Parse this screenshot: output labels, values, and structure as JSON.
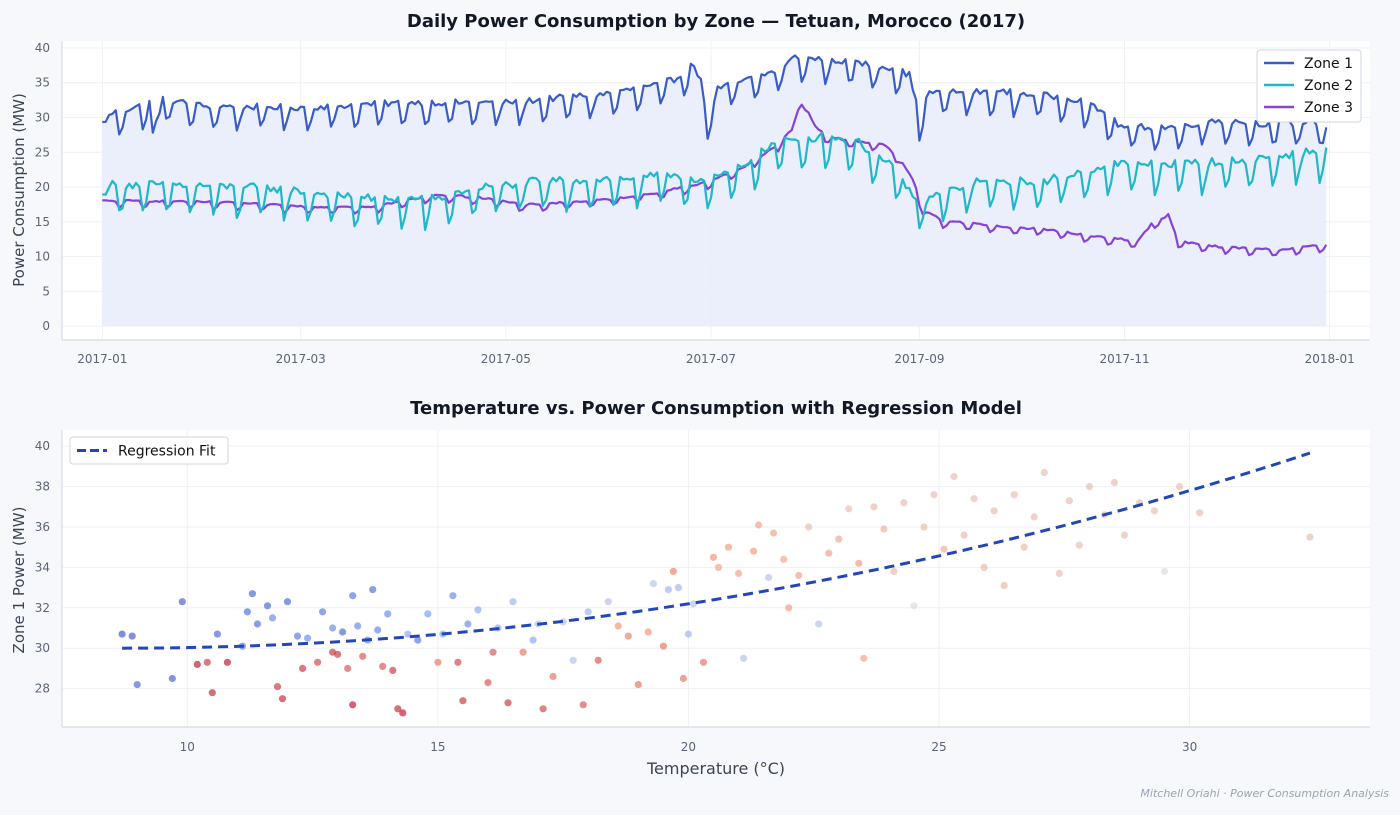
{
  "footer": "Mitchell Oriahi · Power Consumption Analysis",
  "colors": {
    "page_bg": "#f6f8fb",
    "plot_bg": "#ffffff",
    "zone1": "#3a5cc7",
    "zone2": "#1fb7c9",
    "zone3": "#8743d6",
    "zone1_fill": "#e9ecfb",
    "regression": "#2346b8",
    "title": "#121826",
    "axis_text": "#5b6577",
    "label_text": "#3c4556",
    "grid": "#eef1f5",
    "spine": "#d6dbe4"
  },
  "chart_data": [
    {
      "type": "line",
      "title": "Daily Power Consumption by Zone — Tetuan, Morocco (2017)",
      "xlabel": "",
      "ylabel": "Power Consumption (MW)",
      "x_range": [
        "2017-01-01",
        "2017-12-31"
      ],
      "xlim": [
        -12,
        377
      ],
      "ylim": [
        -2,
        41
      ],
      "x_ticks": [
        {
          "label": "2017-01",
          "day": 0
        },
        {
          "label": "2017-03",
          "day": 59
        },
        {
          "label": "2017-05",
          "day": 120
        },
        {
          "label": "2017-07",
          "day": 181
        },
        {
          "label": "2017-09",
          "day": 243
        },
        {
          "label": "2017-11",
          "day": 304
        },
        {
          "label": "2018-01",
          "day": 365
        }
      ],
      "y_ticks": [
        0,
        5,
        10,
        15,
        20,
        25,
        30,
        35,
        40
      ],
      "grid": true,
      "legend_position": "top-right",
      "area_fill_series": "Zone 1",
      "series": [
        {
          "name": "Zone 1",
          "color": "#3a5cc7",
          "keypoints": [
            [
              0,
              28.5
            ],
            [
              3,
              30
            ],
            [
              10,
              30.8
            ],
            [
              14,
              31.5
            ],
            [
              15,
              27
            ],
            [
              18,
              32
            ],
            [
              30,
              31
            ],
            [
              60,
              30.8
            ],
            [
              90,
              31.5
            ],
            [
              120,
              31.5
            ],
            [
              150,
              32.8
            ],
            [
              165,
              34
            ],
            [
              171,
              35
            ],
            [
              175,
              37
            ],
            [
              178,
              35
            ],
            [
              180,
              29
            ],
            [
              183,
              33.5
            ],
            [
              200,
              36
            ],
            [
              206,
              38
            ],
            [
              220,
              37.5
            ],
            [
              235,
              36.5
            ],
            [
              240,
              35.5
            ],
            [
              243,
              29.5
            ],
            [
              246,
              33
            ],
            [
              270,
              33
            ],
            [
              290,
              32
            ],
            [
              298,
              30
            ],
            [
              303,
              28
            ],
            [
              320,
              28
            ],
            [
              330,
              29
            ],
            [
              345,
              28.5
            ],
            [
              355,
              28.5
            ],
            [
              360,
              29
            ],
            [
              364,
              28
            ]
          ],
          "weekly_amp": 2.6
        },
        {
          "name": "Zone 2",
          "color": "#1fb7c9",
          "keypoints": [
            [
              0,
              17.8
            ],
            [
              2,
              19.5
            ],
            [
              20,
              19.5
            ],
            [
              50,
              19
            ],
            [
              80,
              17.5
            ],
            [
              100,
              17.5
            ],
            [
              110,
              19
            ],
            [
              130,
              20
            ],
            [
              160,
              20.5
            ],
            [
              170,
              21
            ],
            [
              180,
              20
            ],
            [
              190,
              22
            ],
            [
              200,
              25.5
            ],
            [
              215,
              26.5
            ],
            [
              225,
              25.5
            ],
            [
              235,
              22
            ],
            [
              243,
              16.8
            ],
            [
              248,
              18
            ],
            [
              260,
              20
            ],
            [
              280,
              20
            ],
            [
              300,
              22.5
            ],
            [
              320,
              22.5
            ],
            [
              340,
              23
            ],
            [
              355,
              24
            ],
            [
              364,
              24.3
            ]
          ],
          "weekly_amp": 3.4
        },
        {
          "name": "Zone 3",
          "color": "#8743d6",
          "keypoints": [
            [
              0,
              17.8
            ],
            [
              20,
              17.8
            ],
            [
              40,
              17.5
            ],
            [
              60,
              17
            ],
            [
              80,
              17
            ],
            [
              100,
              18.7
            ],
            [
              115,
              18.2
            ],
            [
              125,
              17.2
            ],
            [
              150,
              18
            ],
            [
              165,
              19
            ],
            [
              180,
              20.5
            ],
            [
              190,
              22.5
            ],
            [
              200,
              25.5
            ],
            [
              205,
              28
            ],
            [
              208,
              32.5
            ],
            [
              212,
              28.5
            ],
            [
              216,
              27
            ],
            [
              222,
              26.5
            ],
            [
              232,
              26
            ],
            [
              237,
              24
            ],
            [
              241,
              21
            ],
            [
              244,
              16.5
            ],
            [
              250,
              15
            ],
            [
              260,
              14.5
            ],
            [
              270,
              14
            ],
            [
              280,
              13.8
            ],
            [
              290,
              13
            ],
            [
              300,
              12.5
            ],
            [
              308,
              12
            ],
            [
              312,
              14.5
            ],
            [
              317,
              15.8
            ],
            [
              320,
              12
            ],
            [
              330,
              11.3
            ],
            [
              340,
              11
            ],
            [
              350,
              10.8
            ],
            [
              364,
              11.5
            ]
          ],
          "weekly_amp": 0.8
        }
      ]
    },
    {
      "type": "scatter",
      "title": "Temperature vs. Power Consumption with Regression Model",
      "xlabel": "Temperature (°C)",
      "ylabel": "Zone 1 Power (MW)",
      "xlim": [
        7.5,
        33.6
      ],
      "ylim": [
        26.1,
        40.8
      ],
      "x_ticks": [
        10,
        15,
        20,
        25,
        30
      ],
      "y_ticks": [
        28,
        30,
        32,
        34,
        36,
        38,
        40
      ],
      "grid": true,
      "legend_position": "top-left",
      "series": [
        {
          "name": "Regression Fit",
          "style": "dashed",
          "color": "#2346b8",
          "polynomial": {
            "x0": 8.7,
            "c0": 30.0,
            "c1": 0.0,
            "c2": 0.01719
          },
          "x_range": [
            8.7,
            32.4
          ]
        }
      ],
      "points": [
        [
          8.7,
          30.7,
          0.05
        ],
        [
          8.9,
          30.6,
          0.06
        ],
        [
          9.0,
          28.2,
          0.1
        ],
        [
          9.7,
          28.5,
          0.08
        ],
        [
          9.9,
          32.3,
          0.08
        ],
        [
          10.2,
          29.2,
          0.95
        ],
        [
          10.4,
          29.3,
          0.9
        ],
        [
          10.6,
          30.7,
          0.1
        ],
        [
          10.8,
          29.3,
          0.95
        ],
        [
          10.5,
          27.8,
          0.92
        ],
        [
          11.1,
          30.1,
          0.15
        ],
        [
          11.2,
          31.8,
          0.12
        ],
        [
          11.3,
          32.7,
          0.1
        ],
        [
          11.4,
          31.2,
          0.12
        ],
        [
          11.6,
          32.1,
          0.1
        ],
        [
          11.7,
          31.5,
          0.2
        ],
        [
          11.8,
          28.1,
          0.9
        ],
        [
          11.9,
          27.5,
          0.92
        ],
        [
          12.0,
          32.3,
          0.1
        ],
        [
          12.2,
          30.6,
          0.15
        ],
        [
          12.3,
          29.0,
          0.9
        ],
        [
          12.4,
          30.5,
          0.2
        ],
        [
          12.6,
          29.3,
          0.88
        ],
        [
          12.7,
          31.8,
          0.15
        ],
        [
          12.9,
          31.0,
          0.2
        ],
        [
          13.0,
          29.7,
          0.9
        ],
        [
          13.1,
          30.8,
          0.1
        ],
        [
          13.2,
          29.0,
          0.85
        ],
        [
          13.3,
          32.6,
          0.15
        ],
        [
          13.4,
          31.1,
          0.2
        ],
        [
          13.5,
          29.6,
          0.85
        ],
        [
          13.6,
          30.4,
          0.2
        ],
        [
          13.7,
          32.9,
          0.12
        ],
        [
          13.8,
          30.9,
          0.18
        ],
        [
          13.9,
          29.1,
          0.85
        ],
        [
          14.0,
          31.7,
          0.2
        ],
        [
          14.1,
          28.9,
          0.9
        ],
        [
          14.2,
          27.0,
          0.92
        ],
        [
          14.3,
          26.8,
          0.95
        ],
        [
          14.4,
          30.7,
          0.3
        ],
        [
          13.3,
          27.2,
          0.95
        ],
        [
          12.9,
          29.8,
          0.9
        ],
        [
          14.6,
          30.4,
          0.15
        ],
        [
          14.8,
          31.7,
          0.25
        ],
        [
          15.0,
          29.3,
          0.8
        ],
        [
          15.1,
          30.7,
          0.3
        ],
        [
          15.3,
          32.6,
          0.2
        ],
        [
          15.4,
          29.3,
          0.88
        ],
        [
          15.5,
          27.4,
          0.9
        ],
        [
          15.6,
          31.2,
          0.2
        ],
        [
          15.8,
          31.9,
          0.3
        ],
        [
          16.0,
          28.3,
          0.85
        ],
        [
          16.1,
          29.8,
          0.85
        ],
        [
          16.2,
          31.0,
          0.3
        ],
        [
          16.4,
          27.3,
          0.9
        ],
        [
          16.5,
          32.3,
          0.35
        ],
        [
          16.7,
          29.8,
          0.8
        ],
        [
          16.9,
          30.4,
          0.3
        ],
        [
          17.0,
          31.2,
          0.4
        ],
        [
          17.1,
          27.0,
          0.88
        ],
        [
          17.3,
          28.6,
          0.8
        ],
        [
          17.5,
          31.3,
          0.4
        ],
        [
          17.7,
          29.4,
          0.4
        ],
        [
          17.9,
          27.2,
          0.85
        ],
        [
          18.0,
          31.8,
          0.35
        ],
        [
          18.2,
          29.4,
          0.85
        ],
        [
          18.4,
          32.3,
          0.4
        ],
        [
          18.6,
          31.1,
          0.75
        ],
        [
          18.8,
          30.6,
          0.78
        ],
        [
          19.0,
          28.2,
          0.8
        ],
        [
          19.2,
          30.8,
          0.75
        ],
        [
          19.3,
          33.2,
          0.4
        ],
        [
          19.5,
          30.1,
          0.8
        ],
        [
          19.6,
          32.9,
          0.35
        ],
        [
          19.7,
          33.8,
          0.78
        ],
        [
          19.9,
          28.5,
          0.8
        ],
        [
          20.0,
          30.7,
          0.35
        ],
        [
          20.1,
          32.2,
          0.4
        ],
        [
          20.3,
          29.3,
          0.8
        ],
        [
          20.5,
          34.5,
          0.75
        ],
        [
          20.6,
          34.0,
          0.7
        ],
        [
          20.8,
          35.0,
          0.72
        ],
        [
          21.0,
          33.7,
          0.7
        ],
        [
          21.1,
          29.5,
          0.4
        ],
        [
          21.3,
          34.8,
          0.72
        ],
        [
          21.4,
          36.1,
          0.7
        ],
        [
          21.6,
          33.5,
          0.4
        ],
        [
          21.7,
          35.7,
          0.7
        ],
        [
          21.9,
          34.4,
          0.68
        ],
        [
          22.0,
          32.0,
          0.72
        ],
        [
          22.2,
          33.6,
          0.7
        ],
        [
          22.4,
          36.0,
          0.6
        ],
        [
          22.6,
          31.2,
          0.4
        ],
        [
          22.8,
          34.7,
          0.7
        ],
        [
          23.0,
          35.4,
          0.68
        ],
        [
          23.2,
          36.9,
          0.6
        ],
        [
          23.4,
          34.2,
          0.72
        ],
        [
          23.5,
          29.5,
          0.7
        ],
        [
          23.7,
          37.0,
          0.62
        ],
        [
          23.9,
          35.9,
          0.65
        ],
        [
          24.1,
          33.8,
          0.62
        ],
        [
          24.3,
          37.2,
          0.6
        ],
        [
          24.5,
          32.1,
          0.5
        ],
        [
          24.7,
          36.0,
          0.62
        ],
        [
          24.9,
          37.6,
          0.6
        ],
        [
          25.1,
          34.9,
          0.65
        ],
        [
          25.3,
          38.5,
          0.6
        ],
        [
          25.5,
          35.6,
          0.62
        ],
        [
          25.7,
          37.4,
          0.6
        ],
        [
          25.9,
          34.0,
          0.62
        ],
        [
          26.1,
          36.8,
          0.6
        ],
        [
          26.3,
          33.1,
          0.62
        ],
        [
          26.5,
          37.6,
          0.6
        ],
        [
          26.7,
          35.0,
          0.62
        ],
        [
          26.9,
          36.5,
          0.6
        ],
        [
          27.1,
          38.7,
          0.6
        ],
        [
          27.4,
          33.7,
          0.6
        ],
        [
          27.6,
          37.3,
          0.6
        ],
        [
          27.8,
          35.1,
          0.6
        ],
        [
          28.0,
          38.0,
          0.6
        ],
        [
          28.3,
          36.6,
          0.6
        ],
        [
          28.5,
          38.2,
          0.6
        ],
        [
          28.7,
          35.6,
          0.6
        ],
        [
          29.0,
          37.2,
          0.6
        ],
        [
          29.3,
          36.8,
          0.6
        ],
        [
          29.5,
          33.8,
          0.5
        ],
        [
          29.8,
          38.0,
          0.6
        ],
        [
          30.2,
          36.7,
          0.6
        ],
        [
          32.4,
          35.5,
          0.6
        ],
        [
          19.8,
          33.0,
          0.35
        ]
      ]
    }
  ]
}
